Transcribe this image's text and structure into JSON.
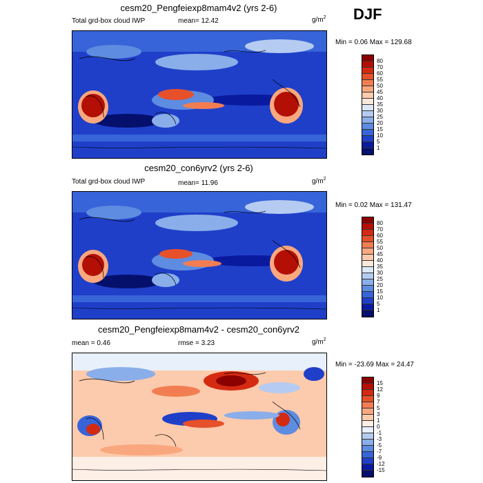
{
  "season": "DJF",
  "panels": [
    {
      "title": "cesm20_Pengfeiexp8mam4v2 (yrs 2-6)",
      "left": "Total grd-box cloud IWP",
      "center": "mean=  12.42",
      "units": "g/m",
      "units_sup": "2",
      "minmax": "Min =   0.06 Max = 129.68",
      "levels": [
        "80",
        "70",
        "60",
        "55",
        "50",
        "45",
        "40",
        "35",
        "30",
        "25",
        "20",
        "15",
        "10",
        "5",
        "1"
      ],
      "colors": [
        "#8b0000",
        "#b30f05",
        "#d42a12",
        "#e6502a",
        "#f27d52",
        "#f9a77e",
        "#fccaac",
        "#fbe7dc",
        "#dce8f8",
        "#b5cbf1",
        "#8aaee9",
        "#5d8ce0",
        "#3764d8",
        "#1f3fc9",
        "#0a1a9e",
        "#04106b"
      ]
    },
    {
      "title": "cesm20_con6yrv2 (yrs 2-6)",
      "left": "Total grd-box cloud IWP",
      "center": "mean=  11.96",
      "units": "g/m",
      "units_sup": "2",
      "minmax": "Min =   0.02 Max = 131.47",
      "levels": [
        "80",
        "70",
        "60",
        "55",
        "50",
        "45",
        "40",
        "35",
        "30",
        "25",
        "20",
        "15",
        "10",
        "5",
        "1"
      ],
      "colors": [
        "#8b0000",
        "#b30f05",
        "#d42a12",
        "#e6502a",
        "#f27d52",
        "#f9a77e",
        "#fccaac",
        "#fbe7dc",
        "#dce8f8",
        "#b5cbf1",
        "#8aaee9",
        "#5d8ce0",
        "#3764d8",
        "#1f3fc9",
        "#0a1a9e",
        "#04106b"
      ]
    },
    {
      "title": "cesm20_Pengfeiexp8mam4v2 - cesm20_con6yrv2",
      "left": "mean =   0.46",
      "center": "rmse =   3.23",
      "units": "g/m",
      "units_sup": "2",
      "minmax": "Min = -23.69 Max =  24.47",
      "levels": [
        "15",
        "12",
        "9",
        "7",
        "5",
        "3",
        "1",
        "0",
        "-1",
        "-3",
        "-5",
        "-7",
        "-9",
        "-12",
        "-15"
      ],
      "colors": [
        "#8b0000",
        "#b30f05",
        "#d42a12",
        "#e6502a",
        "#f27d52",
        "#f9a77e",
        "#fccaac",
        "#fdeee6",
        "#e8f0fb",
        "#b5cbf1",
        "#8aaee9",
        "#5d8ce0",
        "#3764d8",
        "#1f3fc9",
        "#0a1a9e",
        "#04106b"
      ]
    }
  ]
}
